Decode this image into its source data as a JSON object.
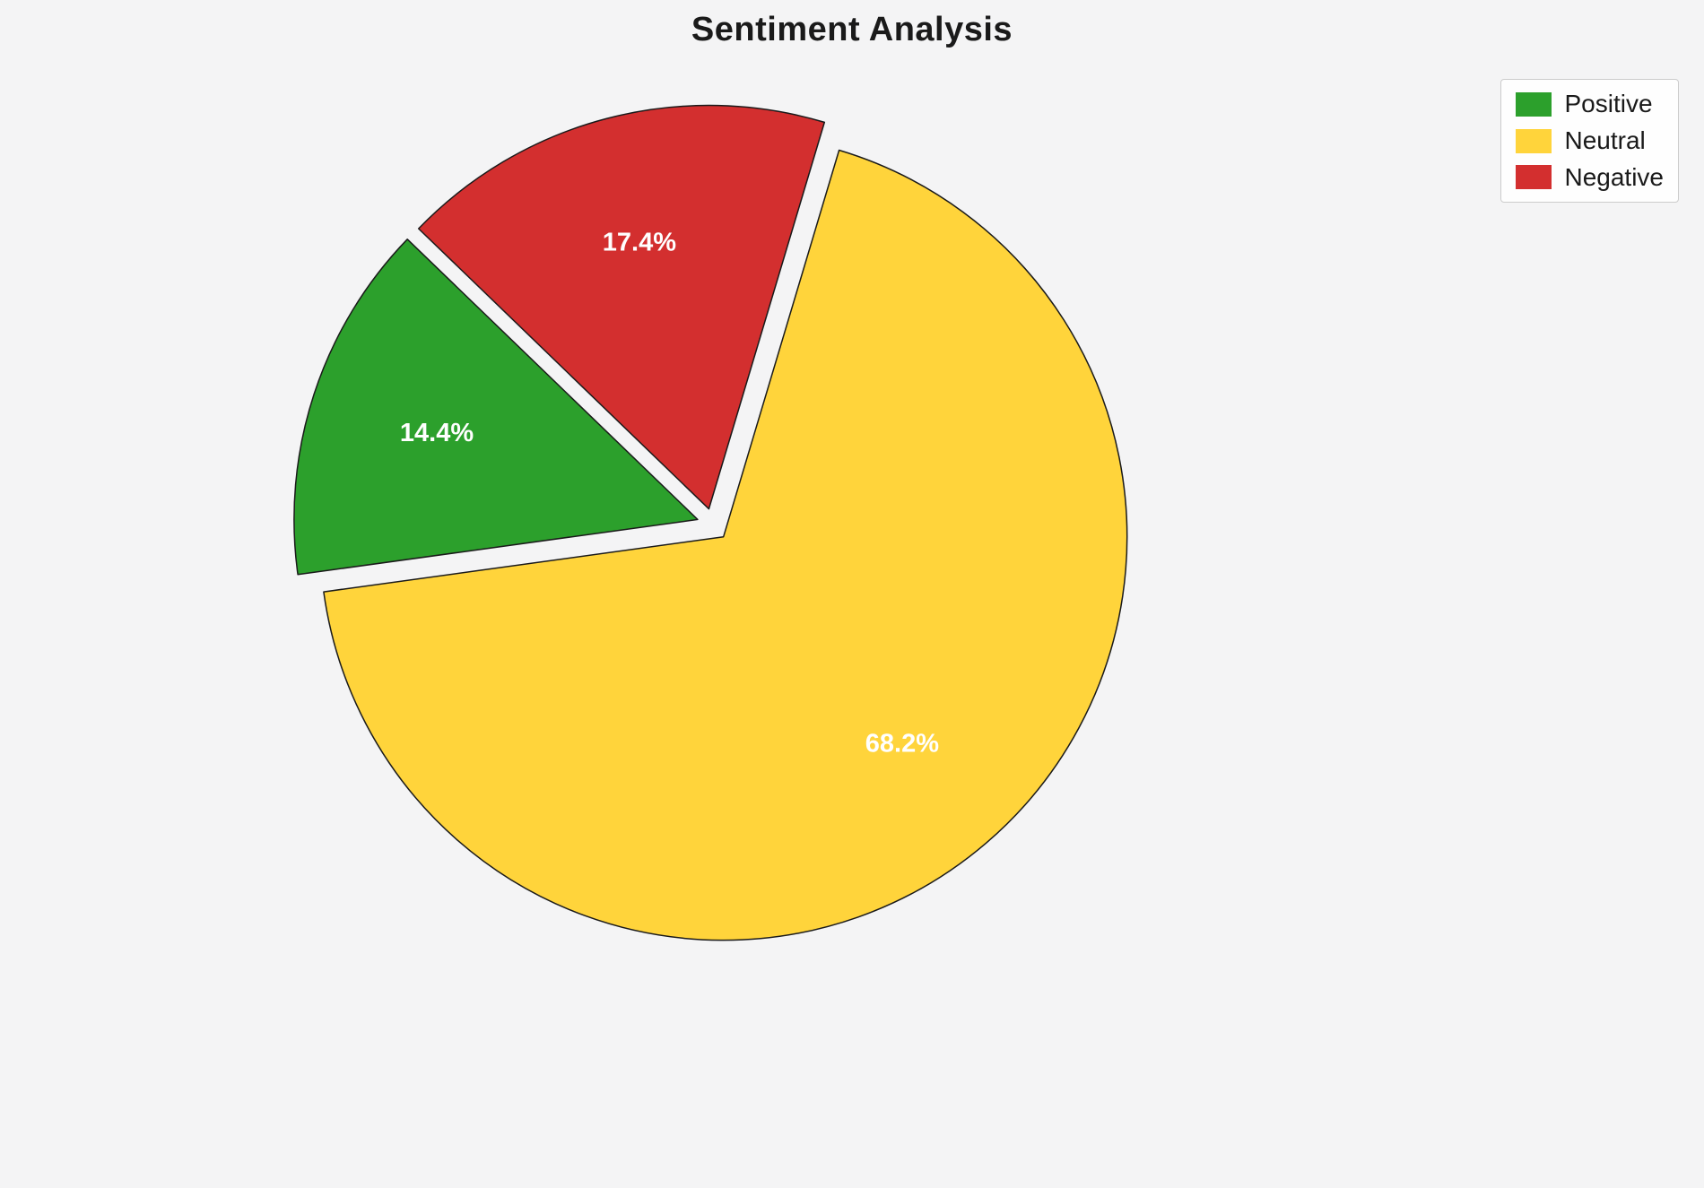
{
  "chart_data": {
    "type": "pie",
    "title": "Sentiment Analysis",
    "labels": [
      "Positive",
      "Neutral",
      "Negative"
    ],
    "values": [
      14.4,
      68.2,
      17.4
    ],
    "pct_labels": [
      "14.4%",
      "68.2%",
      "17.4%"
    ],
    "colors": [
      "#2ca02c",
      "#ffd43b",
      "#d32f2f"
    ],
    "edge_color": "#1a1a1a",
    "pct_label_color": "#ffffff",
    "startangle": 136,
    "counterclock": true,
    "explode": [
      0.04,
      0.04,
      0.04
    ],
    "legend": {
      "position": "upper right",
      "entries": [
        "Positive",
        "Neutral",
        "Negative"
      ]
    }
  }
}
